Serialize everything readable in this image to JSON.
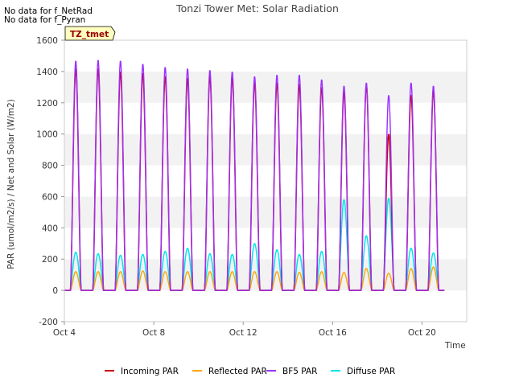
{
  "notes": [
    "No data for f_NetRad",
    "No data for f_Pyran"
  ],
  "chart_data": {
    "type": "line",
    "title": "Tonzi Tower Met: Solar Radiation",
    "xlabel": "Time",
    "ylabel": "PAR (umol/m2/s) / Net and Solar (W/m2)",
    "ylim": [
      -200,
      1600
    ],
    "yticks": [
      -200,
      0,
      200,
      400,
      600,
      800,
      1000,
      1200,
      1400,
      1600
    ],
    "xlim_days": [
      4,
      22
    ],
    "xticks": [
      {
        "day": 4,
        "label": "Oct 4"
      },
      {
        "day": 8,
        "label": "Oct 8"
      },
      {
        "day": 12,
        "label": "Oct 12"
      },
      {
        "day": 16,
        "label": "Oct 16"
      },
      {
        "day": 20,
        "label": "Oct 20"
      }
    ],
    "grid": "horizontal bands",
    "site_label": "TZ_tmet",
    "colors": {
      "incoming": "#cc0000",
      "reflected": "#ffa500",
      "bf5": "#9b30ff",
      "diffuse": "#00e5ee",
      "site_box_bg": "#ffffc0",
      "site_box_text": "#990000"
    },
    "daily": {
      "days": [
        4.5,
        5.5,
        6.5,
        7.5,
        8.5,
        9.5,
        10.5,
        11.5,
        12.5,
        13.5,
        14.5,
        15.5,
        16.5,
        17.5,
        18.5,
        19.5,
        20.5
      ],
      "incoming_peak": [
        1420,
        1420,
        1400,
        1390,
        1370,
        1360,
        1370,
        1360,
        1330,
        1330,
        1320,
        1300,
        1270,
        1310,
        1000,
        1250,
        1280
      ],
      "bf5_peak": [
        1470,
        1475,
        1470,
        1450,
        1430,
        1420,
        1410,
        1400,
        1370,
        1380,
        1380,
        1350,
        1310,
        1330,
        1250,
        1330,
        1310
      ],
      "reflected_peak": [
        120,
        120,
        120,
        125,
        120,
        120,
        120,
        120,
        120,
        120,
        115,
        120,
        115,
        140,
        110,
        140,
        150
      ],
      "diffuse_peak": [
        245,
        235,
        225,
        230,
        250,
        270,
        235,
        230,
        300,
        260,
        230,
        250,
        580,
        350,
        590,
        270,
        240
      ]
    },
    "series": [
      {
        "name": "Incoming PAR",
        "key": "incoming"
      },
      {
        "name": "Reflected PAR",
        "key": "reflected"
      },
      {
        "name": "BF5 PAR",
        "key": "bf5"
      },
      {
        "name": "Diffuse PAR",
        "key": "diffuse"
      }
    ],
    "legend_position": "bottom"
  }
}
